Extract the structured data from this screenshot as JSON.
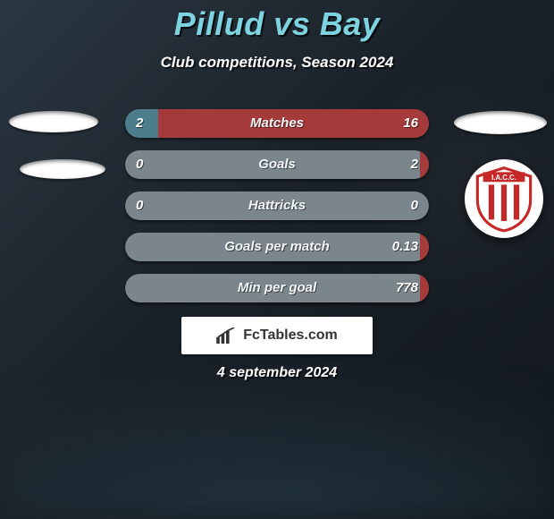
{
  "title": "Pillud vs Bay",
  "subtitle": "Club competitions, Season 2024",
  "date": "4 september 2024",
  "footer": {
    "brand": "FcTables.com"
  },
  "colors": {
    "title": "#7ed3e0",
    "left_fill": "#4c7d8c",
    "right_fill": "#a43a3a",
    "pill_bg": "#7a858c",
    "page_bg_from": "#2a3742",
    "page_bg_to": "#11171c"
  },
  "club_right": {
    "name": "IACC",
    "primary": "#c62828",
    "secondary": "#ffffff"
  },
  "rows": [
    {
      "label": "Matches",
      "left": "2",
      "right": "16",
      "left_pct": 11,
      "right_pct": 89
    },
    {
      "label": "Goals",
      "left": "0",
      "right": "2",
      "left_pct": 0,
      "right_pct": 3
    },
    {
      "label": "Hattricks",
      "left": "0",
      "right": "0",
      "left_pct": 0,
      "right_pct": 0
    },
    {
      "label": "Goals per match",
      "left": "",
      "right": "0.13",
      "left_pct": 0,
      "right_pct": 3
    },
    {
      "label": "Min per goal",
      "left": "",
      "right": "778",
      "left_pct": 0,
      "right_pct": 3
    }
  ]
}
